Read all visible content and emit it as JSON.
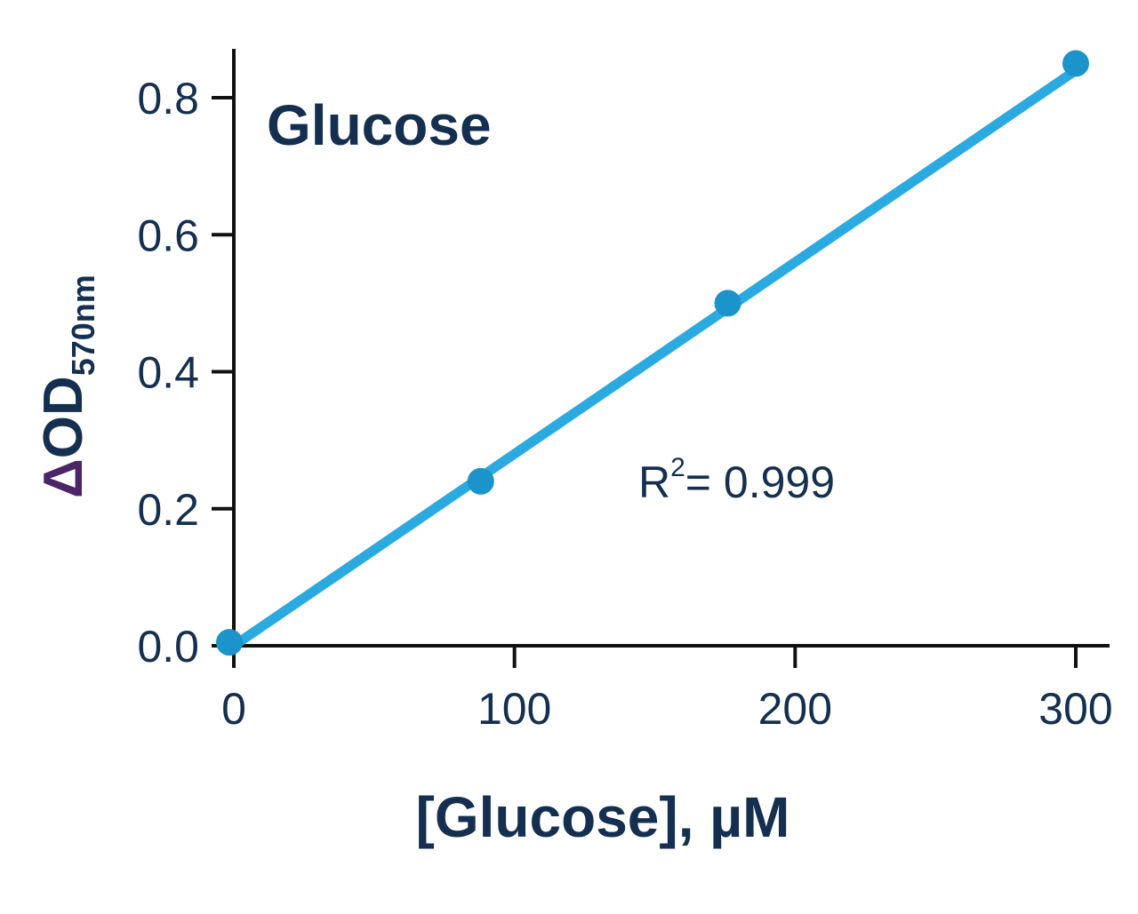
{
  "chart_data": {
    "type": "scatter",
    "title": "Glucose",
    "xlabel": "[Glucose], µM",
    "ylabel": {
      "symbol": "Δ",
      "main": "OD",
      "subscript": "570nm"
    },
    "xlim": [
      0,
      300
    ],
    "ylim": [
      0,
      0.85
    ],
    "x_ticks": [
      0,
      100,
      200,
      300
    ],
    "x_tick_labels": [
      "0",
      "100",
      "200",
      "300"
    ],
    "y_ticks": [
      0,
      0.2,
      0.4,
      0.6,
      0.8
    ],
    "y_tick_labels": [
      "0.0",
      "0.2",
      "0.4",
      "0.6",
      "0.8"
    ],
    "grid": false,
    "series": [
      {
        "x": [
          0,
          88,
          176,
          300
        ],
        "y": [
          0.005,
          0.24,
          0.5,
          0.85
        ]
      }
    ],
    "fit_line": {
      "x": [
        0,
        300
      ],
      "y": [
        0.0,
        0.84
      ]
    },
    "annotation": {
      "base": "R",
      "superscript": "2",
      "rest": "= 0.999"
    },
    "colors": {
      "line": "#2aaae1",
      "point": "#1b93cb",
      "axis": "#111111",
      "text": "#142f4f",
      "delta": "#4b2566"
    }
  }
}
